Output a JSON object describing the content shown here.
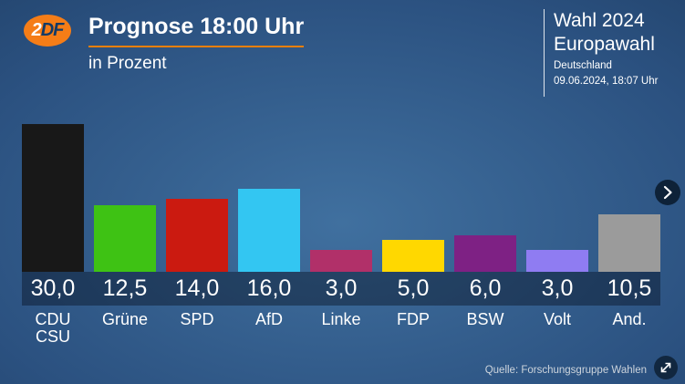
{
  "header": {
    "title": "Prognose 18:00 Uhr",
    "subtitle": "in Prozent",
    "logo": {
      "part1": "2",
      "part2": "DF"
    }
  },
  "infobox": {
    "line1": "Wahl 2024",
    "line2": "Europawahl",
    "line3": "Deutschland",
    "line4": "09.06.2024, 18:07 Uhr"
  },
  "chart_data": {
    "type": "bar",
    "title": "Prognose 18:00 Uhr",
    "ylabel": "in Prozent",
    "ylim": [
      0,
      30
    ],
    "grid": false,
    "categories": [
      "CDU\nCSU",
      "Grüne",
      "SPD",
      "AfD",
      "Linke",
      "FDP",
      "BSW",
      "Volt",
      "And."
    ],
    "values": [
      30.0,
      12.5,
      14.0,
      16.0,
      3.0,
      5.0,
      6.0,
      3.0,
      10.5
    ],
    "value_labels": [
      "30,0",
      "12,5",
      "14,0",
      "16,0",
      "3,0",
      "5,0",
      "6,0",
      "3,0",
      "10,5"
    ],
    "colors": [
      "#181818",
      "#3ec214",
      "#cb1a10",
      "#33c6f2",
      "#b13069",
      "#ffd800",
      "#7e2184",
      "#8f7cf2",
      "#9b9b9b"
    ],
    "ids": [
      "cdu-csu",
      "gruene",
      "spd",
      "afd",
      "linke",
      "fdp",
      "bsw",
      "volt",
      "andere"
    ]
  },
  "footer": {
    "source": "Quelle: Forschungsgruppe Wahlen"
  },
  "icons": {
    "next": "chevron-right",
    "expand": "expand-arrows"
  },
  "accent_color": "#ee7f00",
  "brand_color": "#f57d17"
}
